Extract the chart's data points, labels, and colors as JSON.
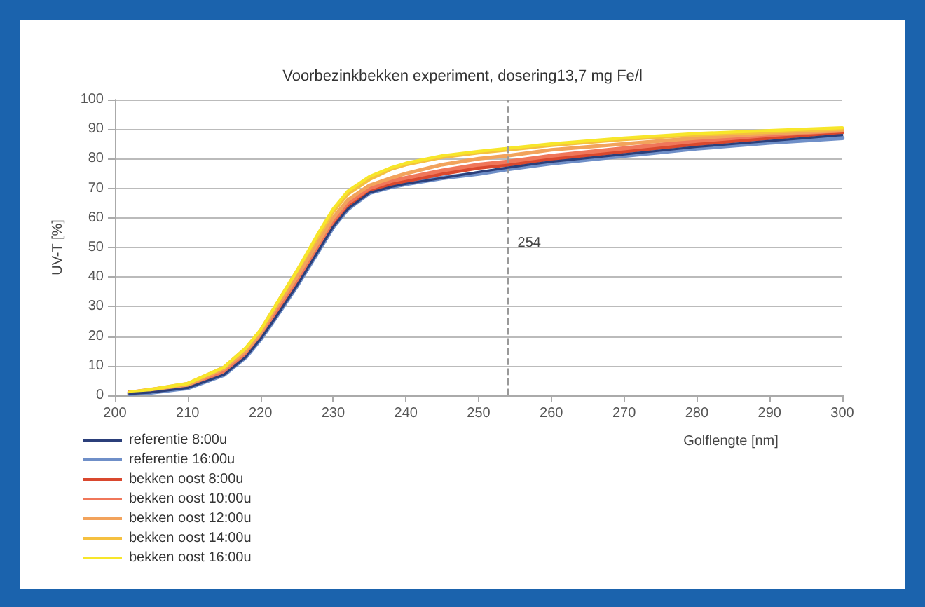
{
  "chart_data": {
    "type": "line",
    "title": "Voorbezinkbekken experiment, dosering13,7 mg Fe/l",
    "xlabel": "Golflengte [nm]",
    "ylabel": "UV-T [%]",
    "x": [
      202,
      205,
      210,
      215,
      218,
      220,
      222,
      225,
      228,
      230,
      232,
      235,
      238,
      240,
      245,
      250,
      254,
      260,
      270,
      280,
      290,
      300
    ],
    "series": [
      {
        "name": "referentie 8:00u",
        "color": "#2b3f7a",
        "values": [
          0.5,
          1,
          2.5,
          7,
          13,
          19,
          26,
          37,
          49,
          57,
          63,
          68.5,
          70.5,
          71.5,
          73.5,
          75.5,
          77,
          79,
          81.5,
          84,
          86,
          88
        ]
      },
      {
        "name": "referentie 16:00u",
        "color": "#6f8fc8",
        "values": [
          0.5,
          1,
          2.5,
          7,
          13,
          19,
          26,
          37,
          49,
          57,
          63,
          68.5,
          70.5,
          71.5,
          73.5,
          75,
          76.5,
          78.5,
          81,
          83.5,
          85.5,
          87
        ]
      },
      {
        "name": "bekken oost 8:00u",
        "color": "#d9482e",
        "values": [
          1,
          1.5,
          3,
          8,
          14,
          20,
          27,
          38,
          50,
          58,
          64,
          69,
          71.5,
          72.5,
          75,
          77,
          78,
          80,
          82.5,
          85,
          87,
          89
        ]
      },
      {
        "name": "bekken oost 10:00u",
        "color": "#f0775a",
        "values": [
          1,
          1.5,
          3,
          8,
          14,
          20,
          28,
          39,
          51,
          59,
          65,
          70,
          72.5,
          73.5,
          76,
          78,
          79,
          81,
          83.5,
          86,
          88,
          89.5
        ]
      },
      {
        "name": "bekken oost 12:00u",
        "color": "#f2a35c",
        "values": [
          1,
          2,
          3.5,
          9,
          15,
          21,
          29,
          40,
          52,
          60,
          66,
          71,
          73.5,
          75,
          78,
          80,
          81,
          83,
          85,
          87,
          88.5,
          89.5
        ]
      },
      {
        "name": "bekken oost 14:00u",
        "color": "#f5c040",
        "values": [
          1,
          2,
          4,
          9.5,
          16,
          22,
          30,
          42,
          54,
          62,
          68,
          73,
          76.5,
          78,
          80.5,
          82,
          83,
          84.5,
          86.5,
          88,
          89,
          90
        ]
      },
      {
        "name": "bekken oost 16:00u",
        "color": "#f7e62a",
        "values": [
          1,
          2,
          4,
          9.5,
          16,
          22,
          30,
          42,
          55,
          63,
          69,
          74,
          77,
          78.5,
          81,
          82.5,
          83.5,
          85,
          87,
          88.5,
          89.5,
          90.5
        ]
      }
    ],
    "xlim": [
      200,
      300
    ],
    "xticks": [
      200,
      210,
      220,
      230,
      240,
      250,
      260,
      270,
      280,
      290,
      300
    ],
    "ylim": [
      0,
      100
    ],
    "yticks": [
      0,
      10,
      20,
      30,
      40,
      50,
      60,
      70,
      80,
      90,
      100
    ],
    "ref_lines": [
      {
        "axis": "x",
        "value": 254,
        "label": "254",
        "color": "#999999",
        "line_style": "dashed"
      }
    ],
    "grid": "y",
    "legend": "bottom left",
    "marker": "none",
    "line_style": "solid"
  }
}
